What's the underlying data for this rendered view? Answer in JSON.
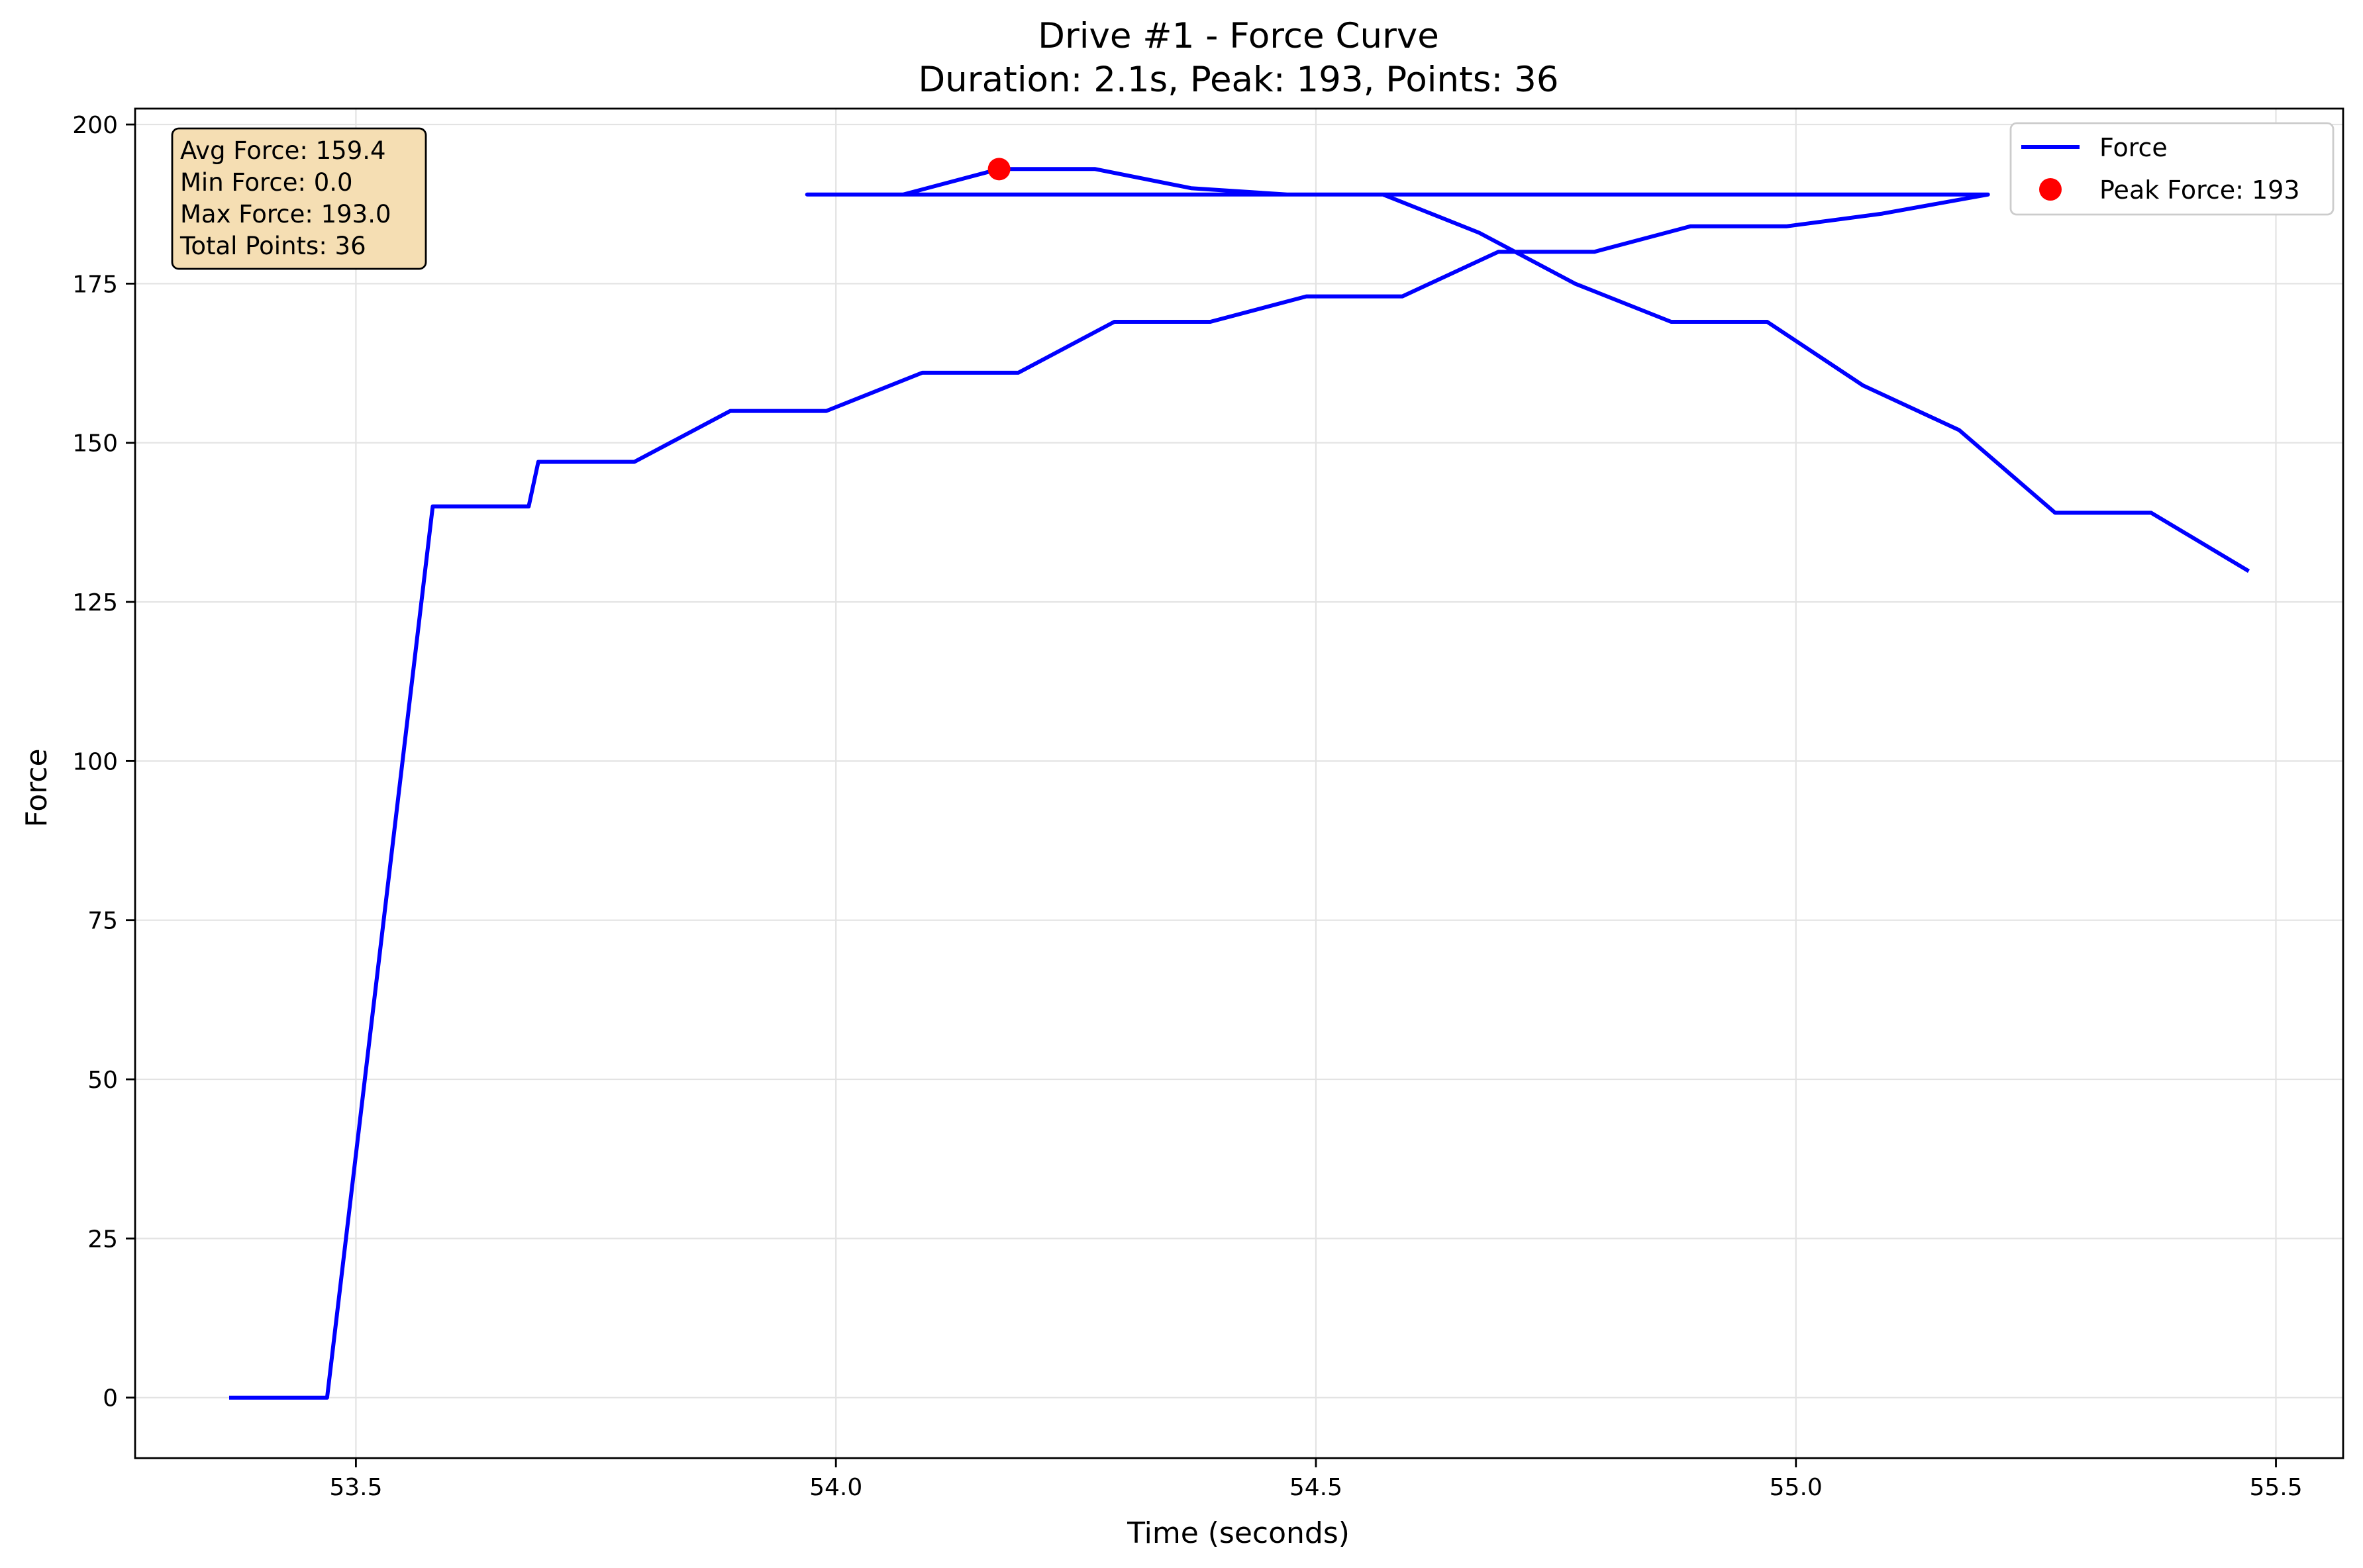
{
  "chart_data": {
    "type": "line",
    "title": "Drive #1 - Force Curve",
    "subtitle": "Duration: 2.1s, Peak: 193, Points: 36",
    "xlabel": "Time (seconds)",
    "ylabel": "Force",
    "xlim": [
      53.27,
      55.57
    ],
    "ylim": [
      -9.5,
      202.5
    ],
    "xticks": [
      53.5,
      54.0,
      54.5,
      55.0,
      55.5
    ],
    "xtick_labels": [
      "53.5",
      "54.0",
      "54.5",
      "55.0",
      "55.5"
    ],
    "yticks": [
      0,
      25,
      50,
      75,
      100,
      125,
      150,
      175,
      200
    ],
    "ytick_labels": [
      "0",
      "25",
      "50",
      "75",
      "100",
      "125",
      "150",
      "175",
      "200"
    ],
    "grid": true,
    "legend_position": "top-right",
    "series": [
      {
        "name": "Force",
        "color": "#0000ff",
        "x": [
          53.37,
          53.47,
          53.58,
          53.68,
          53.69,
          53.79,
          53.89,
          53.99,
          54.09,
          54.19,
          54.29,
          54.39,
          54.49,
          54.59,
          54.69,
          54.79,
          54.89,
          54.99,
          55.09,
          55.2,
          53.97,
          54.07,
          54.17,
          54.27,
          54.37,
          54.47,
          54.57,
          54.67,
          54.77,
          54.87,
          54.97,
          55.07,
          55.17,
          55.27,
          55.37,
          55.47
        ],
        "y": [
          0,
          0,
          140,
          140,
          147,
          147,
          155,
          155,
          161,
          161,
          169,
          169,
          173,
          173,
          180,
          180,
          184,
          184,
          186,
          189,
          189,
          189,
          193,
          193,
          190,
          189,
          189,
          183,
          175,
          169,
          169,
          159,
          152,
          139,
          139,
          130
        ]
      },
      {
        "name": "Peak Force: 193",
        "type": "scatter",
        "color": "#ff0000",
        "x": [
          54.17
        ],
        "y": [
          193
        ]
      }
    ],
    "annotations": [
      "Avg Force: 159.4",
      "Min Force: 0.0",
      "Max Force: 193.0",
      "Total Points: 36"
    ],
    "annotation_box_color": "#f5deb3"
  }
}
